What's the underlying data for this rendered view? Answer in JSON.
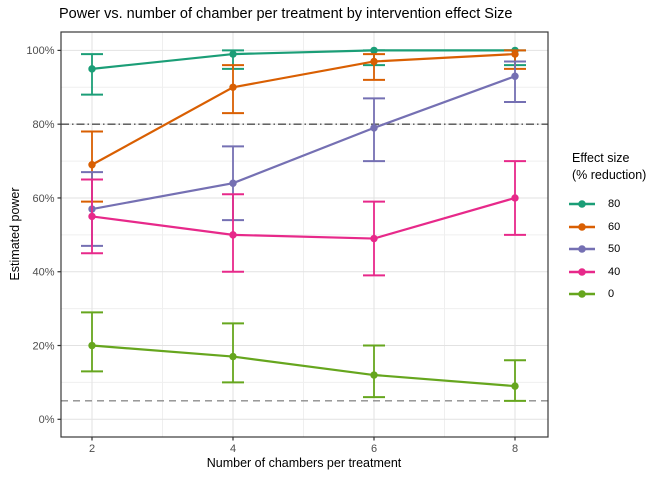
{
  "chart_data": {
    "type": "line+errorbar",
    "title": "Power vs. number of chamber per treatment by intervention effect Size",
    "xlabel": "Number of chambers per treatment",
    "ylabel": "Estimated power",
    "x": [
      2,
      4,
      6,
      8
    ],
    "xlim": [
      2,
      8
    ],
    "ylim": [
      0,
      100
    ],
    "yticks": [
      0,
      20,
      40,
      60,
      80,
      100
    ],
    "ytick_labels": [
      "0%",
      "20%",
      "40%",
      "60%",
      "80%",
      "100%"
    ],
    "xtick_labels": [
      "2",
      "4",
      "6",
      "8"
    ],
    "grid": true,
    "legend": {
      "position": "right",
      "title_line1": "Effect size",
      "title_line2": "(% reduction)"
    },
    "reference_lines": [
      {
        "y": 80,
        "style": "dash-dot",
        "color": "#4f4f4f"
      },
      {
        "y": 5,
        "style": "dashed",
        "color": "#8c8c8c"
      }
    ],
    "series": [
      {
        "name": "80",
        "color": "#1B9E77",
        "values": [
          95,
          99,
          100,
          100
        ],
        "ci_low": [
          88,
          95,
          96,
          96
        ],
        "ci_high": [
          99,
          100,
          100,
          100
        ]
      },
      {
        "name": "60",
        "color": "#D95F02",
        "values": [
          69,
          90,
          97,
          99
        ],
        "ci_low": [
          59,
          83,
          92,
          95
        ],
        "ci_high": [
          78,
          96,
          99,
          100
        ]
      },
      {
        "name": "50",
        "color": "#7570B3",
        "values": [
          57,
          64,
          79,
          93
        ],
        "ci_low": [
          47,
          54,
          70,
          86
        ],
        "ci_high": [
          67,
          74,
          87,
          97
        ]
      },
      {
        "name": "40",
        "color": "#E7298A",
        "values": [
          55,
          50,
          49,
          60
        ],
        "ci_low": [
          45,
          40,
          39,
          50
        ],
        "ci_high": [
          65,
          61,
          59,
          70
        ]
      },
      {
        "name": "0",
        "color": "#66A61E",
        "values": [
          20,
          17,
          12,
          9
        ],
        "ci_low": [
          13,
          10,
          6,
          5
        ],
        "ci_high": [
          29,
          26,
          20,
          16
        ]
      }
    ],
    "colors": {
      "grid_major": "#e2e2e2",
      "grid_minor": "#efefef",
      "panel_border": "#383838",
      "tick": "#333333"
    }
  }
}
